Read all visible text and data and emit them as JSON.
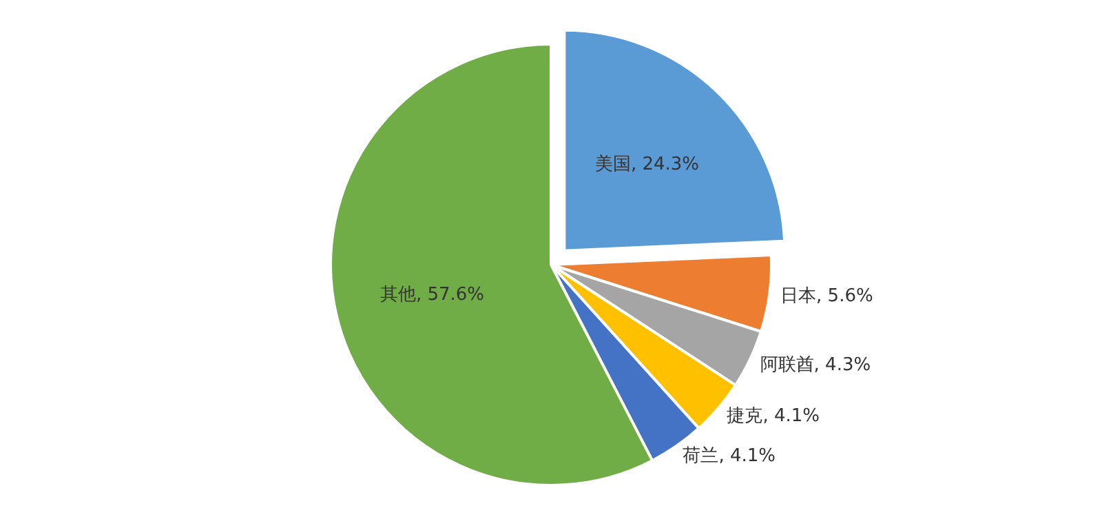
{
  "chart_data": {
    "type": "pie",
    "categories": [
      "美国",
      "日本",
      "阿联酋",
      "捷克",
      "荷兰",
      "其他"
    ],
    "values": [
      24.3,
      5.6,
      4.3,
      4.1,
      4.1,
      57.6
    ],
    "value_labels": [
      ", 24.3%",
      ", 5.6%",
      ", 4.3%",
      ", 4.1%",
      ", 4.1%",
      ", 57.6%"
    ],
    "colors": [
      "#5b9bd5",
      "#ed7d31",
      "#a5a5a5",
      "#ffc000",
      "#4472c4",
      "#70ad47"
    ]
  }
}
